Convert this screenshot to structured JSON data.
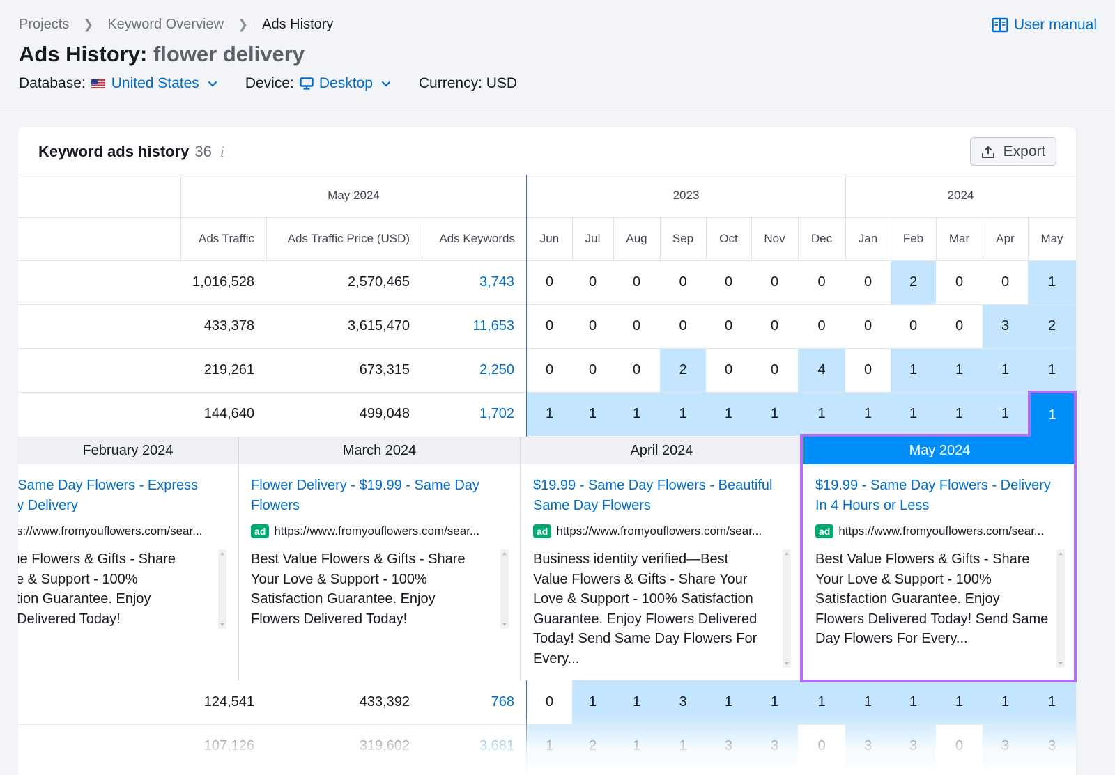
{
  "breadcrumb": [
    "Projects",
    "Keyword Overview",
    "Ads History"
  ],
  "user_manual": "User manual",
  "title": {
    "prefix": "Ads History:",
    "keyword": "flower delivery"
  },
  "filters": {
    "database_label": "Database:",
    "database_value": "United States",
    "device_label": "Device:",
    "device_value": "Desktop",
    "currency": "Currency: USD"
  },
  "card": {
    "title": "Keyword ads history",
    "count": "36",
    "info": "i",
    "export": "Export"
  },
  "table": {
    "group_headers": [
      "May 2024",
      "2023",
      "2024"
    ],
    "columns": [
      "Ads Traffic",
      "Ads Traffic Price (USD)",
      "Ads Keywords"
    ],
    "months": [
      "Jun",
      "Jul",
      "Aug",
      "Sep",
      "Oct",
      "Nov",
      "Dec",
      "Jan",
      "Feb",
      "Mar",
      "Apr",
      "May"
    ],
    "rows": [
      {
        "traffic": "1,016,528",
        "price": "2,570,465",
        "keywords": "3,743",
        "months": [
          "0",
          "0",
          "0",
          "0",
          "0",
          "0",
          "0",
          "0",
          "2",
          "0",
          "0",
          "1"
        ]
      },
      {
        "traffic": "433,378",
        "price": "3,615,470",
        "keywords": "11,653",
        "months": [
          "0",
          "0",
          "0",
          "0",
          "0",
          "0",
          "0",
          "0",
          "0",
          "0",
          "3",
          "2"
        ]
      },
      {
        "traffic": "219,261",
        "price": "673,315",
        "keywords": "2,250",
        "months": [
          "0",
          "0",
          "0",
          "2",
          "0",
          "0",
          "4",
          "0",
          "1",
          "1",
          "1",
          "1"
        ]
      },
      {
        "traffic": "144,640",
        "price": "499,048",
        "keywords": "1,702",
        "months": [
          "1",
          "1",
          "1",
          "1",
          "1",
          "1",
          "1",
          "1",
          "1",
          "1",
          "1",
          "1"
        ]
      },
      {
        "traffic": "124,541",
        "price": "433,392",
        "keywords": "768",
        "months": [
          "0",
          "1",
          "1",
          "3",
          "1",
          "1",
          "1",
          "1",
          "1",
          "1",
          "1",
          "1"
        ]
      },
      {
        "traffic": "107,126",
        "price": "319,602",
        "keywords": "3,681",
        "months": [
          "1",
          "2",
          "1",
          "1",
          "3",
          "3",
          "0",
          "3",
          "3",
          "0",
          "3",
          "3"
        ]
      }
    ]
  },
  "ads": [
    {
      "month": "February 2024",
      "title_l1": "- Same Day Flowers - Express",
      "title_l2": "ay Delivery",
      "badge": "",
      "url": "s://www.fromyouflowers.com/sear...",
      "desc": [
        "lue Flowers & Gifts - Share",
        "ve & Support - 100%",
        "ction Guarantee. Enjoy",
        "; Delivered Today!"
      ]
    },
    {
      "month": "March 2024",
      "title_l1": "Flower Delivery - $19.99 - Same Day",
      "title_l2": "Flowers",
      "badge": "ad",
      "url": "https://www.fromyouflowers.com/sear...",
      "desc": [
        "Best Value Flowers & Gifts - Share",
        "Your Love & Support - 100%",
        "Satisfaction Guarantee. Enjoy",
        "Flowers Delivered Today!"
      ]
    },
    {
      "month": "April 2024",
      "title_l1": "$19.99 - Same Day Flowers - Beautiful",
      "title_l2": "Same Day Flowers",
      "badge": "ad",
      "url": "https://www.fromyouflowers.com/sear...",
      "desc": [
        "Business identity verified—Best",
        "Value Flowers & Gifts - Share Your",
        "Love & Support - 100% Satisfaction",
        "Guarantee. Enjoy Flowers Delivered",
        "Today! Send Same Day Flowers For",
        "Every..."
      ]
    },
    {
      "month": "May 2024",
      "title_l1": "$19.99 - Same Day Flowers - Delivery",
      "title_l2": "In 4 Hours or Less",
      "badge": "ad",
      "url": "https://www.fromyouflowers.com/sear...",
      "desc": [
        "Best Value Flowers & Gifts - Share",
        "Your Love & Support - 100%",
        "Satisfaction Guarantee. Enjoy",
        "Flowers Delivered Today! Send Same",
        "Day Flowers For Every..."
      ]
    }
  ],
  "colors": {
    "accent": "#006dca",
    "highlight": "#c4e5fe",
    "active_header": "#008ff8",
    "outline": "#b36cf5",
    "ad_badge": "#00a96f"
  }
}
